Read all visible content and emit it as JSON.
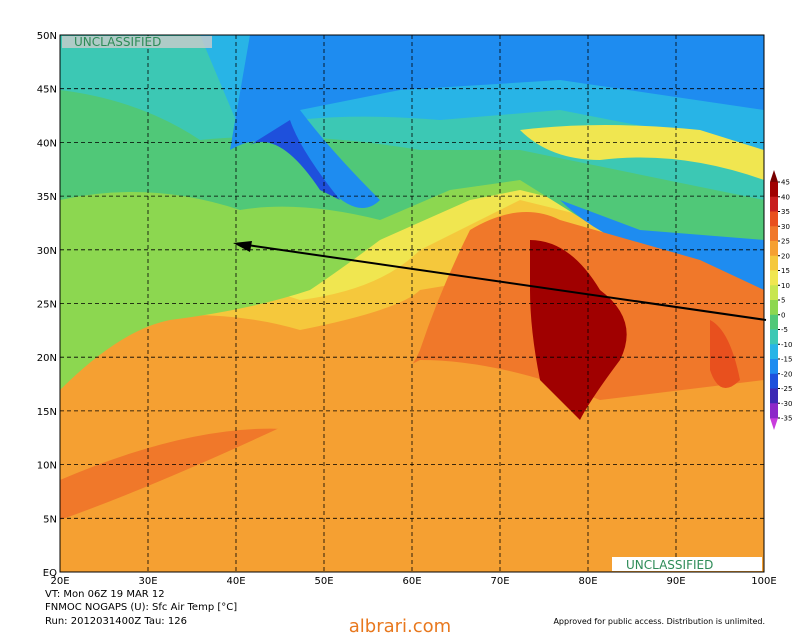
{
  "map": {
    "lat_labels": [
      "50N",
      "45N",
      "40N",
      "35N",
      "30N",
      "25N",
      "20N",
      "15N",
      "10N",
      "5N",
      "EQ"
    ],
    "lon_labels": [
      "20E",
      "30E",
      "40E",
      "50E",
      "60E",
      "70E",
      "80E",
      "90E",
      "100E"
    ],
    "classification_top": "UNCLASSIFIED",
    "classification_bottom": "UNCLASSIFIED",
    "caption": [
      "VT: Mon 06Z 19 MAR 12",
      "FNMOC NOGAPS (U): Sfc Air Temp [°C]",
      "Run: 2012031400Z Tau: 126"
    ],
    "disclaimer": "Approved for public access. Distribution is unlimited.",
    "watermark": "albrari.com",
    "colorbar": {
      "ticks": [
        45,
        40,
        35,
        30,
        25,
        20,
        15,
        10,
        5,
        0,
        -5,
        -10,
        -15,
        -20,
        -25,
        -30,
        -35
      ],
      "colors": [
        "#a00000",
        "#c81e1e",
        "#e8501e",
        "#f0782a",
        "#f5a032",
        "#f5c83c",
        "#f0e650",
        "#c8e650",
        "#8cd750",
        "#50c878",
        "#3cc8b4",
        "#28b4e6",
        "#1e8cf0",
        "#1e50dc",
        "#3c28b4",
        "#8c28c8"
      ],
      "top_color": "#780000",
      "bottom_color": "#c83cdc"
    }
  }
}
